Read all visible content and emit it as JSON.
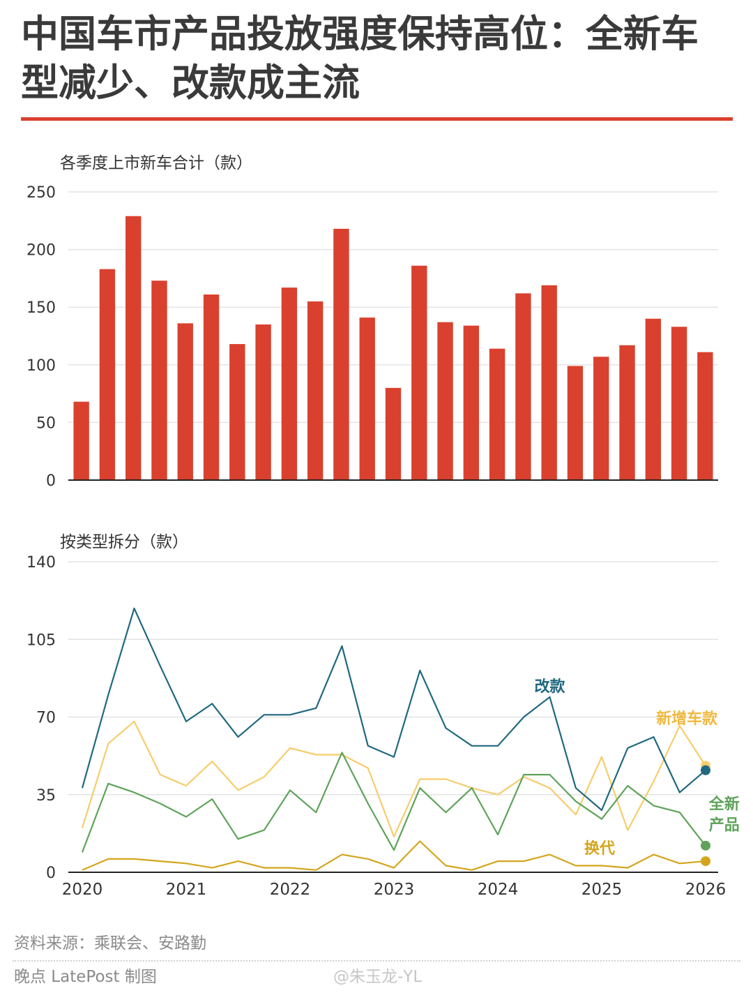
{
  "title": "中国车市产品投放强度保持高位：全新车型减少、改款成主流",
  "footer": {
    "source": "资料来源：乘联会、安路勤",
    "credit": "晚点 LatePost 制图",
    "weibo": "@朱玉龙-YL"
  },
  "colors": {
    "bar": "#d9412e",
    "gaikuan": "#20687f",
    "xinzeng": "#f5cd6c",
    "quanxin": "#5fa35a",
    "huandai": "#d4a51c",
    "rule": "#d9412e"
  },
  "chart_data": [
    {
      "type": "bar",
      "ylabel": "各季度上市新车合计（款）",
      "ylim": [
        0,
        250
      ],
      "yticks": [
        0,
        50,
        100,
        150,
        200,
        250
      ],
      "values": [
        68,
        183,
        229,
        173,
        136,
        161,
        118,
        135,
        167,
        155,
        218,
        141,
        80,
        186,
        137,
        134,
        114,
        162,
        169,
        99,
        107,
        117,
        140,
        133,
        111
      ],
      "grid": true
    },
    {
      "type": "line",
      "ylabel": "按类型拆分（款）",
      "ylim": [
        0,
        140
      ],
      "yticks": [
        0,
        35,
        70,
        105,
        140
      ],
      "x": [
        2020.0,
        2020.25,
        2020.5,
        2020.75,
        2021.0,
        2021.25,
        2021.5,
        2021.75,
        2022.0,
        2022.25,
        2022.5,
        2022.75,
        2023.0,
        2023.25,
        2023.5,
        2023.75,
        2024.0,
        2024.25,
        2024.5,
        2024.75,
        2025.0,
        2025.25,
        2025.5,
        2025.75,
        2026.0
      ],
      "xticks": [
        "2020",
        "2021",
        "2022",
        "2023",
        "2024",
        "2025",
        "2026"
      ],
      "grid": true,
      "series": [
        {
          "name": "改款",
          "color": "#20687f",
          "values": [
            38,
            80,
            119,
            93,
            68,
            76,
            61,
            71,
            71,
            74,
            102,
            57,
            52,
            91,
            65,
            57,
            57,
            70,
            79,
            38,
            28,
            56,
            61,
            36,
            46
          ]
        },
        {
          "name": "新增车款",
          "color": "#f5cd6c",
          "values": [
            20,
            58,
            68,
            44,
            39,
            50,
            37,
            43,
            56,
            53,
            53,
            47,
            16,
            42,
            42,
            38,
            35,
            43,
            38,
            26,
            52,
            19,
            41,
            66,
            48
          ]
        },
        {
          "name": "全新产品",
          "color": "#5fa35a",
          "values": [
            9,
            40,
            36,
            31,
            25,
            33,
            15,
            19,
            37,
            27,
            54,
            31,
            10,
            38,
            27,
            38,
            17,
            44,
            44,
            32,
            24,
            39,
            30,
            27,
            12
          ]
        },
        {
          "name": "换代",
          "color": "#d4a51c",
          "values": [
            1,
            6,
            6,
            5,
            4,
            2,
            5,
            2,
            2,
            1,
            8,
            6,
            2,
            14,
            3,
            1,
            5,
            5,
            8,
            3,
            3,
            2,
            8,
            4,
            5
          ]
        }
      ],
      "labels": {
        "gaikuan": "改款",
        "xinzeng": "新增车款",
        "quanxin_1": "全新",
        "quanxin_2": "产品",
        "huandai": "换代"
      }
    }
  ]
}
